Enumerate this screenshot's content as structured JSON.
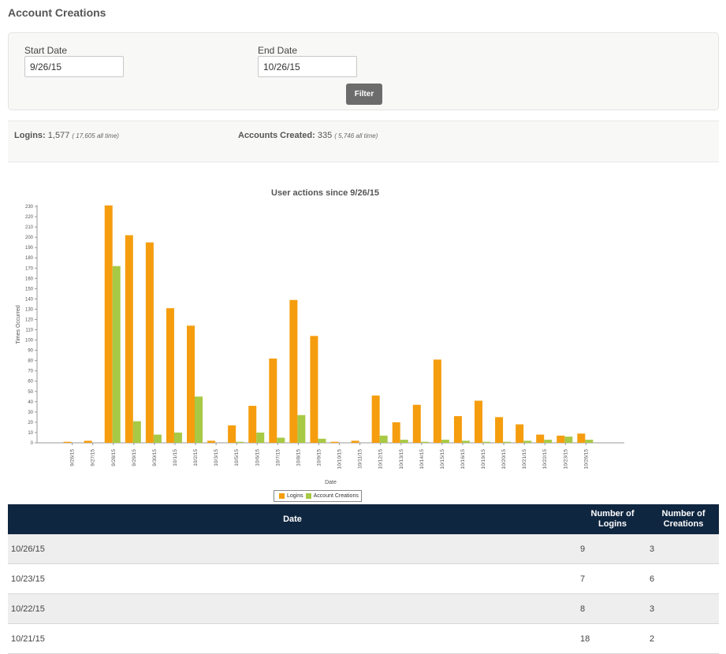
{
  "page": {
    "title": "Account Creations"
  },
  "filter": {
    "start_label": "Start Date",
    "start_value": "9/26/15",
    "end_label": "End Date",
    "end_value": "10/26/15",
    "button_label": "Filter"
  },
  "stats": {
    "logins_label": "Logins:",
    "logins_value": "1,577",
    "logins_alltime": "( 17,605 all time)",
    "accounts_label": "Accounts Created:",
    "accounts_value": "335",
    "accounts_alltime": "( 5,746 all time)"
  },
  "colors": {
    "logins": "#f59d0e",
    "creations": "#a8c945",
    "header_bg": "#0f2640"
  },
  "chart_data": {
    "type": "bar",
    "title": "User actions since 9/26/15",
    "xlabel": "Date",
    "ylabel": "Times Occurred",
    "ylim": [
      0,
      230
    ],
    "ytick_step": 10,
    "legend_position": "bottom-center",
    "categories": [
      "9/26/15",
      "9/27/15",
      "9/28/15",
      "9/29/15",
      "9/30/15",
      "10/1/15",
      "10/2/15",
      "10/3/15",
      "10/5/15",
      "10/6/15",
      "10/7/15",
      "10/8/15",
      "10/9/15",
      "10/10/15",
      "10/11/15",
      "10/12/15",
      "10/13/15",
      "10/14/15",
      "10/15/15",
      "10/16/15",
      "10/19/15",
      "10/20/15",
      "10/21/15",
      "10/22/15",
      "10/23/15",
      "10/26/15"
    ],
    "series": [
      {
        "name": "Logins",
        "values": [
          1,
          2,
          231,
          202,
          195,
          131,
          114,
          2,
          17,
          36,
          82,
          139,
          104,
          1,
          2,
          46,
          20,
          37,
          81,
          26,
          41,
          25,
          18,
          8,
          7,
          9
        ]
      },
      {
        "name": "Account Creations",
        "values": [
          0,
          0,
          172,
          21,
          8,
          10,
          45,
          0,
          1,
          10,
          5,
          27,
          4,
          0,
          0,
          7,
          3,
          1,
          3,
          2,
          1,
          1,
          2,
          3,
          6,
          3
        ]
      }
    ]
  },
  "table": {
    "headers": {
      "date": "Date",
      "logins": "Number of Logins",
      "creations": "Number of Creations"
    },
    "rows": [
      {
        "date": "10/26/15",
        "logins": "9",
        "creations": "3"
      },
      {
        "date": "10/23/15",
        "logins": "7",
        "creations": "6"
      },
      {
        "date": "10/22/15",
        "logins": "8",
        "creations": "3"
      },
      {
        "date": "10/21/15",
        "logins": "18",
        "creations": "2"
      }
    ]
  }
}
